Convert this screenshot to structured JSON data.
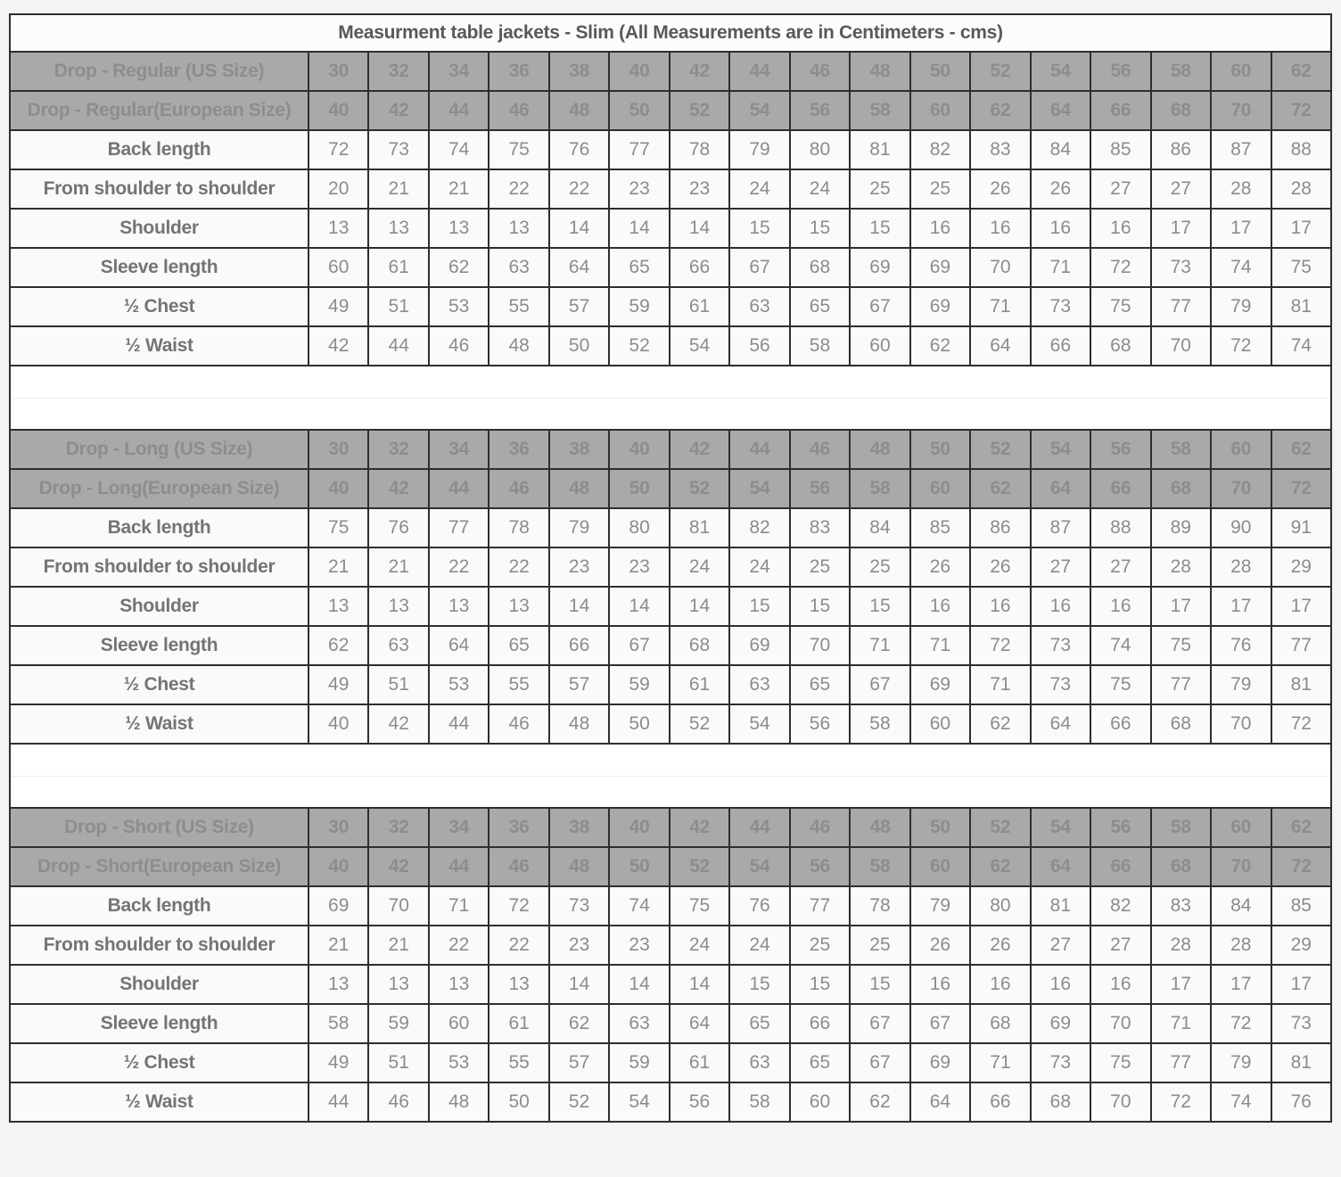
{
  "table": {
    "title": "Measurment table jackets - Slim (All Measurements are in Centimeters - cms)",
    "us_sizes": [
      30,
      32,
      34,
      36,
      38,
      40,
      42,
      44,
      46,
      48,
      50,
      52,
      54,
      56,
      58,
      60,
      62
    ],
    "eu_sizes": [
      40,
      42,
      44,
      46,
      48,
      50,
      52,
      54,
      56,
      58,
      60,
      62,
      64,
      66,
      68,
      70,
      72
    ],
    "sections": [
      {
        "name": "regular",
        "us_label": "Drop - Regular (US Size)",
        "eu_label": "Drop - Regular(European Size)",
        "rows": [
          {
            "label": "Back length",
            "values": [
              72,
              73,
              74,
              75,
              76,
              77,
              78,
              79,
              80,
              81,
              82,
              83,
              84,
              85,
              86,
              87,
              88
            ]
          },
          {
            "label": "From shoulder to shoulder",
            "values": [
              20,
              21,
              21,
              22,
              22,
              23,
              23,
              24,
              24,
              25,
              25,
              26,
              26,
              27,
              27,
              28,
              28
            ]
          },
          {
            "label": "Shoulder",
            "values": [
              13,
              13,
              13,
              13,
              14,
              14,
              14,
              15,
              15,
              15,
              16,
              16,
              16,
              16,
              17,
              17,
              17
            ]
          },
          {
            "label": "Sleeve length",
            "values": [
              60,
              61,
              62,
              63,
              64,
              65,
              66,
              67,
              68,
              69,
              69,
              70,
              71,
              72,
              73,
              74,
              75
            ]
          },
          {
            "label": "½ Chest",
            "values": [
              49,
              51,
              53,
              55,
              57,
              59,
              61,
              63,
              65,
              67,
              69,
              71,
              73,
              75,
              77,
              79,
              81
            ]
          },
          {
            "label": "½ Waist",
            "values": [
              42,
              44,
              46,
              48,
              50,
              52,
              54,
              56,
              58,
              60,
              62,
              64,
              66,
              68,
              70,
              72,
              74
            ]
          }
        ]
      },
      {
        "name": "long",
        "us_label": "Drop - Long (US Size)",
        "eu_label": "Drop - Long(European Size)",
        "rows": [
          {
            "label": "Back length",
            "values": [
              75,
              76,
              77,
              78,
              79,
              80,
              81,
              82,
              83,
              84,
              85,
              86,
              87,
              88,
              89,
              90,
              91
            ]
          },
          {
            "label": "From shoulder to shoulder",
            "values": [
              21,
              21,
              22,
              22,
              23,
              23,
              24,
              24,
              25,
              25,
              26,
              26,
              27,
              27,
              28,
              28,
              29
            ]
          },
          {
            "label": "Shoulder",
            "values": [
              13,
              13,
              13,
              13,
              14,
              14,
              14,
              15,
              15,
              15,
              16,
              16,
              16,
              16,
              17,
              17,
              17
            ]
          },
          {
            "label": "Sleeve length",
            "values": [
              62,
              63,
              64,
              65,
              66,
              67,
              68,
              69,
              70,
              71,
              71,
              72,
              73,
              74,
              75,
              76,
              77
            ]
          },
          {
            "label": "½ Chest",
            "values": [
              49,
              51,
              53,
              55,
              57,
              59,
              61,
              63,
              65,
              67,
              69,
              71,
              73,
              75,
              77,
              79,
              81
            ]
          },
          {
            "label": "½ Waist",
            "values": [
              40,
              42,
              44,
              46,
              48,
              50,
              52,
              54,
              56,
              58,
              60,
              62,
              64,
              66,
              68,
              70,
              72
            ]
          }
        ]
      },
      {
        "name": "short",
        "us_label": "Drop - Short (US Size)",
        "eu_label": "Drop - Short(European Size)",
        "rows": [
          {
            "label": "Back length",
            "values": [
              69,
              70,
              71,
              72,
              73,
              74,
              75,
              76,
              77,
              78,
              79,
              80,
              81,
              82,
              83,
              84,
              85
            ]
          },
          {
            "label": "From shoulder to shoulder",
            "values": [
              21,
              21,
              22,
              22,
              23,
              23,
              24,
              24,
              25,
              25,
              26,
              26,
              27,
              27,
              28,
              28,
              29
            ]
          },
          {
            "label": "Shoulder",
            "values": [
              13,
              13,
              13,
              13,
              14,
              14,
              14,
              15,
              15,
              15,
              16,
              16,
              16,
              16,
              17,
              17,
              17
            ]
          },
          {
            "label": "Sleeve length",
            "values": [
              58,
              59,
              60,
              61,
              62,
              63,
              64,
              65,
              66,
              67,
              67,
              68,
              69,
              70,
              71,
              72,
              73
            ]
          },
          {
            "label": "½ Chest",
            "values": [
              49,
              51,
              53,
              55,
              57,
              59,
              61,
              63,
              65,
              67,
              69,
              71,
              73,
              75,
              77,
              79,
              81
            ]
          },
          {
            "label": "½ Waist",
            "values": [
              44,
              46,
              48,
              50,
              52,
              54,
              56,
              58,
              60,
              62,
              64,
              66,
              68,
              70,
              72,
              74,
              76
            ]
          }
        ]
      }
    ]
  },
  "colors": {
    "page_bg": "#f4f4f5",
    "grid_border": "#2e2e2e",
    "header_bg": "#a9a9a9",
    "header_text": "#8d8d8d",
    "cell_bg": "#fafafa",
    "value_text": "#8c8c8c",
    "label_text": "#747474",
    "title_text": "#595959",
    "gap_bg": "#ffffff"
  }
}
